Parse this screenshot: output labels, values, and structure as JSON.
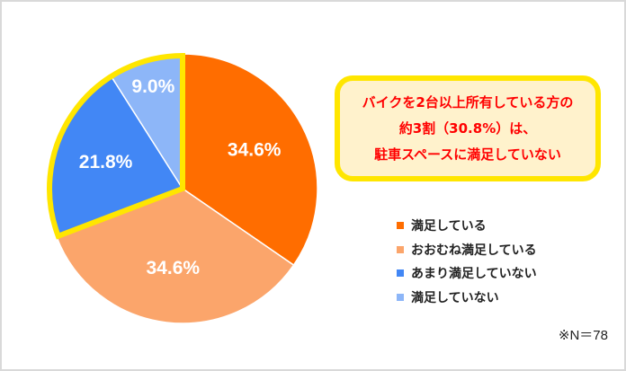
{
  "chart_data": {
    "type": "pie",
    "title": "",
    "categories": [
      "満足している",
      "おおむね満足している",
      "あまり満足していない",
      "満足していない"
    ],
    "values": [
      34.6,
      34.6,
      21.8,
      9.0
    ],
    "labels": [
      "34.6%",
      "34.6%",
      "21.8%",
      "9.0%"
    ],
    "colors": [
      "#ff6d00",
      "#fba56b",
      "#4287f5",
      "#8db6f8"
    ],
    "start_angle": "12 o'clock, clockwise",
    "highlighted_slices": [
      "あまり満足していない",
      "満足していない"
    ],
    "highlight_color": "#ffe600",
    "legend_position": "right",
    "annotation": "バイクを2台以上所有している方の約3割（30.8%）は、駐車スペースに満足していない",
    "note": "※N＝78"
  },
  "callout": {
    "lines": [
      "バイクを2台以上所有している方の",
      "約3割（30.8%）は、",
      "駐車スペースに満足していない"
    ]
  },
  "legend": {
    "items": [
      {
        "label": "満足している",
        "color": "#ff6d00"
      },
      {
        "label": "おおむね満足している",
        "color": "#fba56b"
      },
      {
        "label": "あまり満足していない",
        "color": "#4287f5"
      },
      {
        "label": "満足していない",
        "color": "#8db6f8"
      }
    ]
  },
  "note": "※N＝78"
}
